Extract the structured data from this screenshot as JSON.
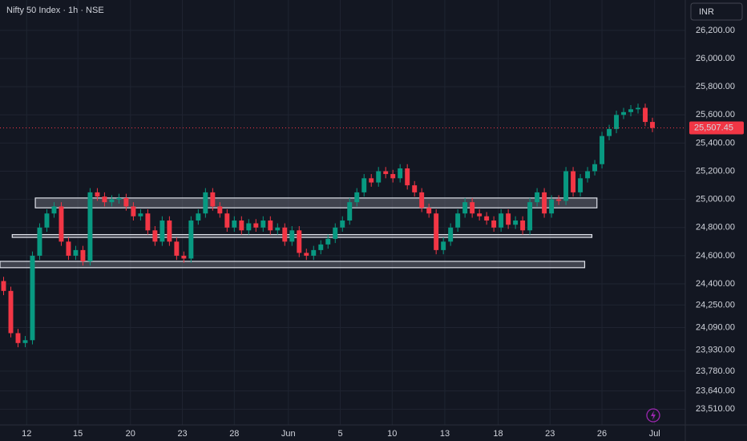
{
  "chart_data": {
    "type": "candlestick",
    "title": "Nifty 50 Index · 1h · NSE",
    "currency": "INR",
    "up_color": "#089981",
    "down_color": "#f23645",
    "grid": true,
    "xlim": [
      -0.5,
      94
    ],
    "ylim": [
      23398,
      26416
    ],
    "yticks": [
      {
        "value": 26200,
        "label": "26,200.00"
      },
      {
        "value": 26000,
        "label": "26,000.00"
      },
      {
        "value": 25800,
        "label": "25,800.00"
      },
      {
        "value": 25600,
        "label": "25,600.00"
      },
      {
        "value": 25400,
        "label": "25,400.00"
      },
      {
        "value": 25200,
        "label": "25,200.00"
      },
      {
        "value": 25000,
        "label": "25,000.00"
      },
      {
        "value": 24800,
        "label": "24,800.00"
      },
      {
        "value": 24600,
        "label": "24,600.00"
      },
      {
        "value": 24400,
        "label": "24,400.00"
      },
      {
        "value": 24250,
        "label": "24,250.00"
      },
      {
        "value": 24090,
        "label": "24,090.00"
      },
      {
        "value": 23930,
        "label": "23,930.00"
      },
      {
        "value": 23780,
        "label": "23,780.00"
      },
      {
        "value": 23640,
        "label": "23,640.00"
      },
      {
        "value": 23510,
        "label": "23,510.00"
      }
    ],
    "xticks": [
      {
        "value": 3.2,
        "label": "12"
      },
      {
        "value": 10.3,
        "label": "15"
      },
      {
        "value": 17.6,
        "label": "20"
      },
      {
        "value": 24.8,
        "label": "23"
      },
      {
        "value": 32,
        "label": "28"
      },
      {
        "value": 39.5,
        "label": "Jun"
      },
      {
        "value": 46.7,
        "label": "5"
      },
      {
        "value": 53.9,
        "label": "10"
      },
      {
        "value": 61.2,
        "label": "13"
      },
      {
        "value": 68.6,
        "label": "18"
      },
      {
        "value": 75.8,
        "label": "23"
      },
      {
        "value": 83,
        "label": "26"
      },
      {
        "value": 90.3,
        "label": "Jul"
      }
    ],
    "open": [
      24420,
      24350,
      24050,
      23980,
      24000,
      24600,
      24800,
      24900,
      24950,
      24700,
      24600,
      24640,
      24560,
      25050,
      25020,
      24980,
      25000,
      25010,
      24950,
      24880,
      24900,
      24780,
      24700,
      24850,
      24700,
      24600,
      24580,
      24850,
      24900,
      25050,
      24950,
      24900,
      24800,
      24850,
      24780,
      24830,
      24800,
      24850,
      24780,
      24800,
      24700,
      24780,
      24620,
      24600,
      24640,
      24680,
      24720,
      24800,
      24850,
      24980,
      25050,
      25150,
      25120,
      25200,
      25180,
      25150,
      25220,
      25100,
      25050,
      24940,
      24900,
      24640,
      24700,
      24800,
      24900,
      24980,
      24900,
      24880,
      24850,
      24800,
      24900,
      24820,
      24850,
      24780,
      24980,
      25050,
      24900,
      25000,
      24990,
      25200,
      25050,
      25150,
      25200,
      25250,
      25450,
      25500,
      25600,
      25620,
      25640,
      25650,
      25550
    ],
    "high": [
      24450,
      24380,
      24080,
      24030,
      24630,
      24830,
      24930,
      24980,
      24980,
      24730,
      24670,
      24670,
      25080,
      25080,
      25050,
      25030,
      25040,
      25040,
      24980,
      24930,
      24930,
      24810,
      24880,
      24880,
      24730,
      24630,
      24880,
      24930,
      25080,
      25080,
      24980,
      24930,
      24880,
      24880,
      24860,
      24860,
      24880,
      24880,
      24830,
      24830,
      24810,
      24810,
      24650,
      24670,
      24710,
      24750,
      24830,
      24880,
      25010,
      25080,
      25180,
      25180,
      25230,
      25230,
      25210,
      25250,
      25250,
      25130,
      25080,
      24970,
      24930,
      24730,
      24830,
      24930,
      25010,
      25010,
      24930,
      24910,
      24880,
      24930,
      24930,
      24880,
      24880,
      25010,
      25080,
      25080,
      25030,
      25030,
      25230,
      25230,
      25180,
      25230,
      25280,
      25480,
      25530,
      25630,
      25650,
      25670,
      25680,
      25680,
      25580
    ],
    "low": [
      24320,
      24020,
      23950,
      23950,
      23970,
      24570,
      24770,
      24870,
      24670,
      24570,
      24570,
      24530,
      24530,
      24990,
      24950,
      24950,
      24970,
      24920,
      24850,
      24850,
      24750,
      24670,
      24670,
      24670,
      24570,
      24550,
      24550,
      24820,
      24870,
      24920,
      24870,
      24770,
      24770,
      24750,
      24750,
      24770,
      24770,
      24750,
      24750,
      24670,
      24670,
      24590,
      24570,
      24570,
      24610,
      24650,
      24690,
      24770,
      24820,
      24950,
      25020,
      25090,
      25090,
      25150,
      25120,
      25120,
      25070,
      25020,
      24910,
      24870,
      24610,
      24610,
      24670,
      24770,
      24870,
      24870,
      24850,
      24820,
      24770,
      24770,
      24790,
      24790,
      24750,
      24750,
      24950,
      24870,
      24870,
      24960,
      24960,
      25020,
      25020,
      25120,
      25170,
      25220,
      25420,
      25470,
      25570,
      25590,
      25610,
      25520,
      25477.45
    ],
    "close": [
      24350,
      24050,
      23980,
      24000,
      24600,
      24800,
      24900,
      24950,
      24700,
      24600,
      24640,
      24560,
      25050,
      25020,
      24980,
      25000,
      25010,
      24950,
      24880,
      24900,
      24780,
      24700,
      24850,
      24700,
      24600,
      24580,
      24850,
      24900,
      25050,
      24950,
      24900,
      24800,
      24850,
      24780,
      24830,
      24800,
      24850,
      24780,
      24800,
      24700,
      24780,
      24620,
      24600,
      24640,
      24680,
      24720,
      24800,
      24850,
      24980,
      25050,
      25150,
      25120,
      25200,
      25180,
      25150,
      25220,
      25100,
      25050,
      24940,
      24900,
      24640,
      24700,
      24800,
      24900,
      24980,
      24900,
      24880,
      24850,
      24800,
      24900,
      24820,
      24850,
      24780,
      24980,
      25050,
      24900,
      25000,
      24990,
      25200,
      25050,
      25150,
      25200,
      25250,
      25450,
      25500,
      25600,
      25620,
      25640,
      25650,
      25550,
      25507.45
    ],
    "zones": [
      {
        "from": 4.4,
        "to": 82.3,
        "low": 24940,
        "high": 25010
      },
      {
        "from": 1.2,
        "to": 81.6,
        "low": 24730,
        "high": 24750
      },
      {
        "from": -0.5,
        "to": 80.6,
        "low": 24515,
        "high": 24560
      }
    ],
    "last_price": {
      "value": 25507.45,
      "label": "25,507.45"
    }
  }
}
